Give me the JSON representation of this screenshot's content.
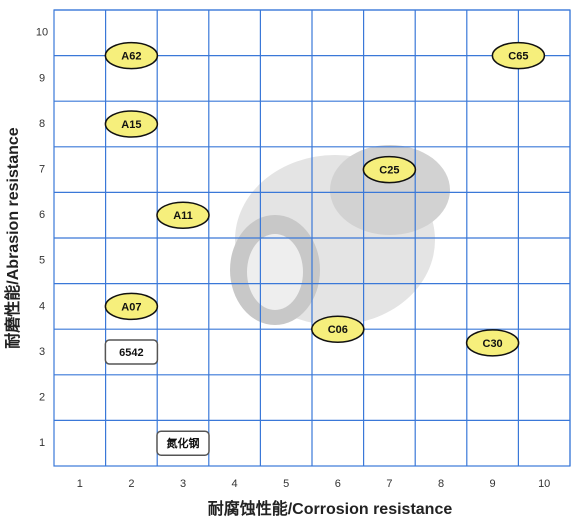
{
  "chart_data": {
    "type": "scatter",
    "xlabel": "耐腐蚀性能/Corrosion resistance",
    "ylabel": "耐磨性能/Abrasion resistance",
    "xlim": [
      0.5,
      10.5
    ],
    "ylim": [
      0.5,
      10.5
    ],
    "xticks": [
      1,
      2,
      3,
      4,
      5,
      6,
      7,
      8,
      9,
      10
    ],
    "yticks": [
      1,
      2,
      3,
      4,
      5,
      6,
      7,
      8,
      9,
      10
    ],
    "grid": true,
    "grid_color": "#3a78d8",
    "series": [
      {
        "marker": "ellipse",
        "color": "#f6ef7c",
        "labels": [
          "A62",
          "C65",
          "A15",
          "C25",
          "A11",
          "A07",
          "C06",
          "C30"
        ],
        "x": [
          2,
          9.5,
          2,
          7,
          3,
          2,
          6,
          9
        ],
        "values": [
          9.5,
          9.5,
          8,
          7,
          6,
          4,
          3.5,
          3.2
        ]
      },
      {
        "marker": "box",
        "color": "#ffffff",
        "labels": [
          "6542",
          "氮化钢"
        ],
        "x": [
          2,
          3
        ],
        "values": [
          3,
          1
        ]
      }
    ]
  }
}
